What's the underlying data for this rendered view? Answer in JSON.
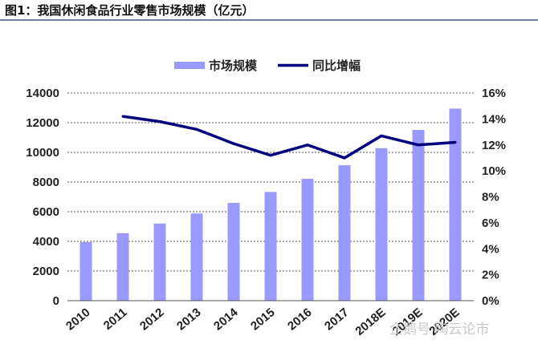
{
  "page": {
    "title": "图1：我国休闲食品行业零售市场规模（亿元）",
    "watermark": "企鹅号 陶云论市"
  },
  "colors": {
    "bar": "#9999ff",
    "line": "#000080",
    "grid": "#555555",
    "text": "#222222"
  },
  "chart_data": {
    "type": "bar",
    "title": "",
    "xlabel": "",
    "ylabel": "",
    "categories": [
      "2010",
      "2011",
      "2012",
      "2013",
      "2014",
      "2015",
      "2016",
      "2017",
      "2018E",
      "2019E",
      "2020E"
    ],
    "series": [
      {
        "name": "市场规模",
        "type": "bar",
        "axis": "left",
        "values": [
          3950,
          4550,
          5200,
          5880,
          6590,
          7330,
          8220,
          9130,
          10280,
          11510,
          12950
        ]
      },
      {
        "name": "同比增幅",
        "type": "line",
        "axis": "right",
        "values": [
          null,
          14.2,
          13.8,
          13.2,
          12.1,
          11.2,
          12.0,
          11.0,
          12.7,
          12.0,
          12.2
        ]
      }
    ],
    "ylim": [
      0,
      14000
    ],
    "yticks": [
      "0",
      "2000",
      "4000",
      "6000",
      "8000",
      "10000",
      "12000",
      "14000"
    ],
    "y2lim": [
      0,
      16
    ],
    "y2ticks": [
      "0%",
      "2%",
      "4%",
      "6%",
      "8%",
      "10%",
      "12%",
      "14%",
      "16%"
    ],
    "grid": "horizontal dashed",
    "legend": "top"
  }
}
